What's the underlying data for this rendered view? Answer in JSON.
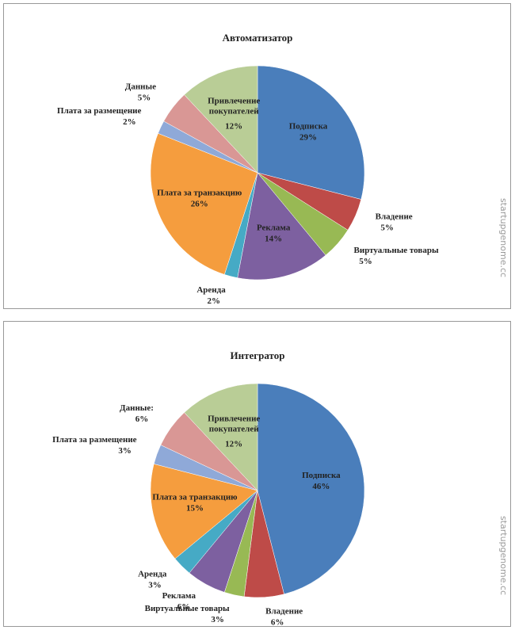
{
  "chart_data": [
    {
      "type": "pie",
      "title": "Автоматизатор",
      "watermark": "startupgenome.cc",
      "categories": [
        "Подписка",
        "Владение",
        "Виртуальные товары",
        "Реклама",
        "Аренда",
        "Плата за транзакцию",
        "Плата за размещение",
        "Данные",
        "Привлечение покупателей"
      ],
      "values": [
        29,
        5,
        5,
        14,
        2,
        26,
        2,
        5,
        12
      ],
      "value_labels": [
        "29%",
        "5%",
        "5%",
        "14%",
        "2%",
        "26%",
        "2%",
        "5%",
        "12%"
      ],
      "colors": [
        "#4a7ebb",
        "#be4b48",
        "#98b954",
        "#7d60a0",
        "#46aac5",
        "#f59d3e",
        "#8fa9d8",
        "#d99795",
        "#b9cd96"
      ]
    },
    {
      "type": "pie",
      "title": "Интегратор",
      "watermark": "startupgenome.cc",
      "categories": [
        "Подписка",
        "Владение",
        "Виртуальные товары",
        "Реклама",
        "Аренда",
        "Плата за транзакцию",
        "Плата за размещение",
        "Данные:",
        "Привлечение покупателей"
      ],
      "values": [
        46,
        6,
        3,
        6,
        3,
        15,
        3,
        6,
        12
      ],
      "value_labels": [
        "46%",
        "6%",
        "3%",
        "6%",
        "3%",
        "15%",
        "3%",
        "6%",
        "12%"
      ],
      "colors": [
        "#4a7ebb",
        "#be4b48",
        "#98b954",
        "#7d60a0",
        "#46aac5",
        "#f59d3e",
        "#8fa9d8",
        "#d99795",
        "#b9cd96"
      ]
    }
  ]
}
